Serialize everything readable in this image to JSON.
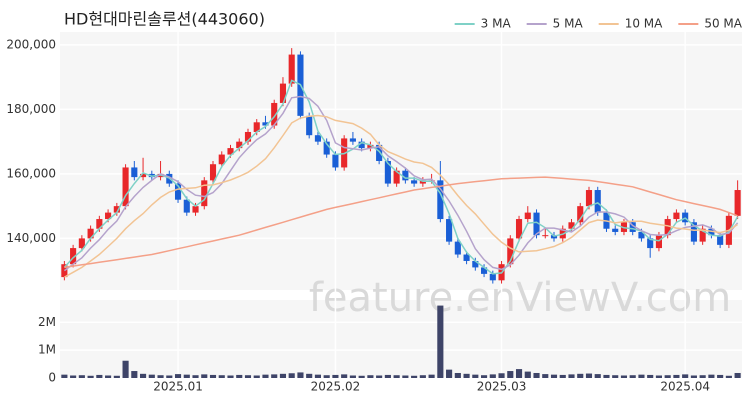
{
  "chart_data": {
    "type": "candlestick",
    "title": "HD현대마린솔루션(443060)",
    "watermark": "feature.enViewV.com",
    "categories": [
      null,
      null,
      null,
      null,
      null,
      null,
      null,
      null,
      null,
      null,
      null,
      null,
      null,
      "2025.01",
      null,
      null,
      null,
      null,
      null,
      null,
      null,
      null,
      null,
      null,
      null,
      null,
      null,
      null,
      null,
      null,
      null,
      "2025.02",
      null,
      null,
      null,
      null,
      null,
      null,
      null,
      null,
      null,
      null,
      null,
      null,
      null,
      null,
      null,
      null,
      null,
      null,
      "2025.03",
      null,
      null,
      null,
      null,
      null,
      null,
      null,
      null,
      null,
      null,
      null,
      null,
      null,
      null,
      null,
      null,
      null,
      null,
      null,
      null,
      "2025.04",
      null,
      null,
      null,
      null,
      null,
      null
    ],
    "open": [
      128000,
      132000,
      137000,
      140000,
      143000,
      146000,
      148000,
      150000,
      162000,
      159000,
      160000,
      159000,
      160000,
      157000,
      152000,
      148000,
      150000,
      158000,
      163000,
      166000,
      168000,
      170000,
      173000,
      176000,
      175000,
      182000,
      188000,
      197000,
      178000,
      172000,
      170000,
      166000,
      162000,
      171000,
      170000,
      168000,
      169000,
      164000,
      157000,
      161000,
      158000,
      157000,
      158000,
      158000,
      146000,
      139000,
      135000,
      133000,
      131000,
      129000,
      127000,
      132000,
      140000,
      146000,
      148000,
      141000,
      141000,
      140000,
      143000,
      145000,
      150000,
      155000,
      148000,
      143000,
      142000,
      145000,
      142000,
      140000,
      137000,
      141000,
      146000,
      148000,
      145000,
      139000,
      143000,
      141000,
      138000,
      147000
    ],
    "high": [
      133000,
      138000,
      141000,
      144000,
      147000,
      149000,
      151000,
      163000,
      164000,
      165000,
      161000,
      164000,
      161000,
      158000,
      153000,
      151000,
      159000,
      164000,
      167000,
      169000,
      171000,
      174000,
      177000,
      178000,
      183000,
      190000,
      199000,
      198000,
      179000,
      173000,
      171000,
      167000,
      172000,
      173000,
      171000,
      170000,
      170000,
      165000,
      162000,
      162000,
      159000,
      159000,
      160000,
      164000,
      147000,
      140000,
      136000,
      134000,
      132000,
      130000,
      133000,
      141000,
      147000,
      150000,
      149000,
      143000,
      142000,
      144000,
      146000,
      151000,
      156000,
      156000,
      149000,
      144000,
      146000,
      146000,
      143000,
      141000,
      142000,
      147000,
      149000,
      149000,
      146000,
      144000,
      144000,
      142000,
      148000,
      158000
    ],
    "low": [
      127000,
      131000,
      136000,
      139000,
      142000,
      145000,
      147000,
      149000,
      158000,
      158000,
      158000,
      158000,
      156000,
      151000,
      147000,
      147000,
      149000,
      157000,
      162000,
      165000,
      167000,
      169000,
      172000,
      174000,
      174000,
      181000,
      187000,
      177000,
      171000,
      169000,
      165000,
      161000,
      161000,
      169000,
      167000,
      167000,
      163000,
      156000,
      156000,
      157000,
      156000,
      156000,
      157000,
      145000,
      138000,
      134000,
      132000,
      130000,
      128000,
      126000,
      126000,
      131000,
      139000,
      145000,
      140000,
      140000,
      139000,
      139000,
      142000,
      144000,
      149000,
      147000,
      142000,
      141000,
      141000,
      141000,
      139000,
      134000,
      136000,
      140000,
      145000,
      144000,
      138000,
      138000,
      140000,
      137000,
      137000,
      146000
    ],
    "close": [
      132000,
      137000,
      140000,
      143000,
      146000,
      148000,
      150000,
      162000,
      159000,
      160000,
      159000,
      160000,
      157000,
      152000,
      148000,
      150000,
      158000,
      163000,
      166000,
      168000,
      170000,
      173000,
      176000,
      175000,
      182000,
      188000,
      197000,
      178000,
      172000,
      170000,
      166000,
      162000,
      171000,
      170000,
      168000,
      169000,
      164000,
      157000,
      161000,
      158000,
      157000,
      158000,
      158000,
      146000,
      139000,
      135000,
      133000,
      131000,
      129000,
      127000,
      132000,
      140000,
      146000,
      148000,
      141000,
      141000,
      140000,
      143000,
      145000,
      150000,
      155000,
      148000,
      143000,
      142000,
      145000,
      142000,
      140000,
      137000,
      141000,
      146000,
      148000,
      145000,
      139000,
      143000,
      141000,
      138000,
      147000,
      155000
    ],
    "up_color": "#e8272a",
    "down_color": "#1a5fd6",
    "ylim": [
      124000,
      204000
    ],
    "yticks": [
      {
        "value": 140000,
        "label": "140,000"
      },
      {
        "value": 160000,
        "label": "160,000"
      },
      {
        "value": 180000,
        "label": "180,000"
      },
      {
        "value": 200000,
        "label": "200,000"
      }
    ],
    "grid": true,
    "legend": "top-right",
    "series": [
      {
        "name": "3 MA",
        "color": "#7fd1c7",
        "values": [
          131000,
          134000,
          136300,
          140000,
          143000,
          145700,
          148000,
          153300,
          157000,
          160300,
          159300,
          159700,
          158700,
          156300,
          152300,
          150000,
          152000,
          157000,
          162300,
          165700,
          168000,
          170300,
          173000,
          174700,
          177700,
          181700,
          189000,
          187700,
          182300,
          173300,
          169300,
          166000,
          166300,
          167700,
          169700,
          169000,
          167000,
          163300,
          160700,
          158700,
          158700,
          157700,
          157700,
          154000,
          147700,
          140000,
          135700,
          133000,
          131000,
          129000,
          129300,
          133000,
          139300,
          144700,
          145000,
          143300,
          140700,
          141300,
          142700,
          146000,
          150000,
          151000,
          148700,
          144300,
          143300,
          143000,
          142300,
          139700,
          139300,
          141300,
          145000,
          146300,
          144000,
          142300,
          141000,
          140700,
          142000,
          146700
        ]
      },
      {
        "name": "5 MA",
        "color": "#b5a3cc",
        "values": [
          130000,
          132000,
          134000,
          137000,
          139600,
          142800,
          145400,
          149800,
          153000,
          155800,
          158000,
          160000,
          159000,
          157600,
          155200,
          153400,
          153000,
          154200,
          157000,
          161000,
          165000,
          168000,
          170600,
          172400,
          175200,
          178800,
          183600,
          184000,
          183400,
          181000,
          176600,
          169600,
          168200,
          167800,
          167400,
          168000,
          168400,
          165600,
          163800,
          161800,
          159400,
          158200,
          158400,
          155400,
          151600,
          147200,
          142200,
          136800,
          133400,
          131000,
          130400,
          131800,
          134800,
          138600,
          141400,
          143200,
          143200,
          142600,
          142000,
          143800,
          146600,
          148200,
          148200,
          147600,
          146600,
          144000,
          142400,
          141200,
          141000,
          141200,
          142400,
          143400,
          143800,
          144200,
          143200,
          141200,
          141600,
          144800
        ]
      },
      {
        "name": "10 MA",
        "color": "#f2c494",
        "values": [
          128000,
          129500,
          131000,
          133000,
          135000,
          137500,
          140000,
          143000,
          145500,
          147700,
          150400,
          152700,
          154400,
          155300,
          155500,
          155700,
          156500,
          156600,
          157300,
          158100,
          159200,
          160500,
          162400,
          164700,
          168100,
          171900,
          175800,
          177300,
          177900,
          178100,
          177700,
          176600,
          176100,
          175600,
          174200,
          172300,
          169000,
          166900,
          165800,
          164600,
          163700,
          163300,
          162000,
          159600,
          156700,
          153300,
          150200,
          147600,
          144400,
          141300,
          138800,
          137000,
          135800,
          136000,
          136200,
          136800,
          137500,
          138700,
          140300,
          142600,
          144900,
          145700,
          145400,
          144800,
          145200,
          145300,
          145300,
          144700,
          144300,
          143900,
          143200,
          142900,
          142500,
          142600,
          142200,
          141800,
          142500,
          144300
        ]
      },
      {
        "name": "50 MA",
        "color": "#f4a088",
        "values": [
          131000,
          131400,
          131800,
          132200,
          132600,
          133000,
          133400,
          133800,
          134200,
          134600,
          135000,
          135600,
          136200,
          136800,
          137400,
          138000,
          138600,
          139200,
          139800,
          140400,
          141000,
          141800,
          142600,
          143400,
          144200,
          145000,
          145800,
          146600,
          147400,
          148200,
          149000,
          149600,
          150200,
          150800,
          151400,
          152000,
          152600,
          153200,
          153800,
          154400,
          155000,
          155400,
          155800,
          156200,
          156600,
          157000,
          157300,
          157600,
          157900,
          158200,
          158500,
          158600,
          158700,
          158800,
          158900,
          159000,
          158800,
          158600,
          158400,
          158200,
          158000,
          157600,
          157200,
          156800,
          156400,
          156000,
          155200,
          154400,
          153600,
          152800,
          152000,
          151400,
          150800,
          150200,
          149600,
          149000,
          148000,
          147000
        ]
      }
    ],
    "volume": {
      "color": "#3e4468",
      "values": [
        120000,
        90000,
        100000,
        80000,
        110000,
        90000,
        80000,
        620000,
        250000,
        150000,
        120000,
        100000,
        90000,
        140000,
        120000,
        100000,
        130000,
        110000,
        100000,
        90000,
        110000,
        100000,
        90000,
        120000,
        130000,
        150000,
        170000,
        200000,
        150000,
        120000,
        100000,
        110000,
        130000,
        90000,
        80000,
        100000,
        90000,
        110000,
        100000,
        90000,
        80000,
        100000,
        120000,
        2600000,
        300000,
        180000,
        150000,
        120000,
        100000,
        130000,
        170000,
        250000,
        320000,
        230000,
        180000,
        140000,
        120000,
        110000,
        130000,
        150000,
        160000,
        140000,
        110000,
        100000,
        90000,
        100000,
        120000,
        110000,
        90000,
        100000,
        110000,
        130000,
        90000,
        100000,
        120000,
        110000,
        80000,
        180000
      ],
      "ylim": [
        0,
        2800000
      ],
      "yticks": [
        0,
        {
          "value": 1000000,
          "label": "1M"
        },
        {
          "value": 2000000,
          "label": "2M"
        }
      ]
    }
  }
}
